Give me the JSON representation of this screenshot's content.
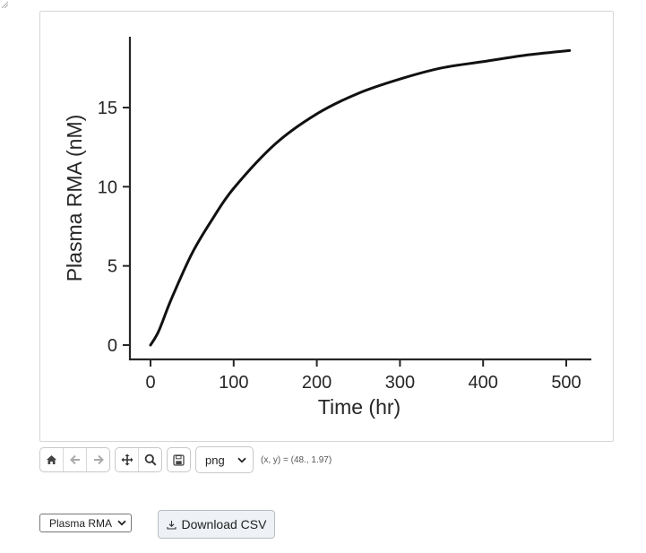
{
  "chart_data": {
    "type": "line",
    "title": "",
    "xlabel": "Time (hr)",
    "ylabel": "Plasma RMA (nM)",
    "xlim": [
      -25,
      530
    ],
    "ylim": [
      -0.9,
      19.5
    ],
    "xticks": [
      0,
      100,
      200,
      300,
      400,
      500
    ],
    "xtick_labels": [
      "0",
      "100",
      "200",
      "300",
      "400",
      "500"
    ],
    "yticks": [
      0,
      5,
      10,
      15
    ],
    "ytick_labels": [
      "0",
      "5",
      "10",
      "15"
    ],
    "grid": false,
    "legend": null,
    "series": [
      {
        "name": "Plasma RMA",
        "color": "#111111",
        "x": [
          0,
          10,
          25,
          50,
          75,
          100,
          150,
          200,
          250,
          300,
          350,
          400,
          450,
          504
        ],
        "y": [
          0.0,
          0.9,
          2.9,
          5.8,
          8.0,
          9.9,
          12.7,
          14.6,
          15.9,
          16.8,
          17.5,
          17.9,
          18.3,
          18.6
        ]
      }
    ]
  },
  "toolbar": {
    "buttons": [
      {
        "name": "home",
        "icon": "home-icon"
      },
      {
        "name": "back",
        "icon": "arrow-left-icon"
      },
      {
        "name": "forward",
        "icon": "arrow-right-icon"
      },
      {
        "name": "pan",
        "icon": "move-icon"
      },
      {
        "name": "zoom",
        "icon": "magnifier-icon"
      },
      {
        "name": "save",
        "icon": "floppy-disk-icon"
      }
    ],
    "format_selected": "png",
    "coords_text": "(x, y) = (48., 1.97)"
  },
  "controls": {
    "series_selected": "Plasma RMA",
    "download_label": "Download CSV",
    "download_icon": "download-icon"
  }
}
